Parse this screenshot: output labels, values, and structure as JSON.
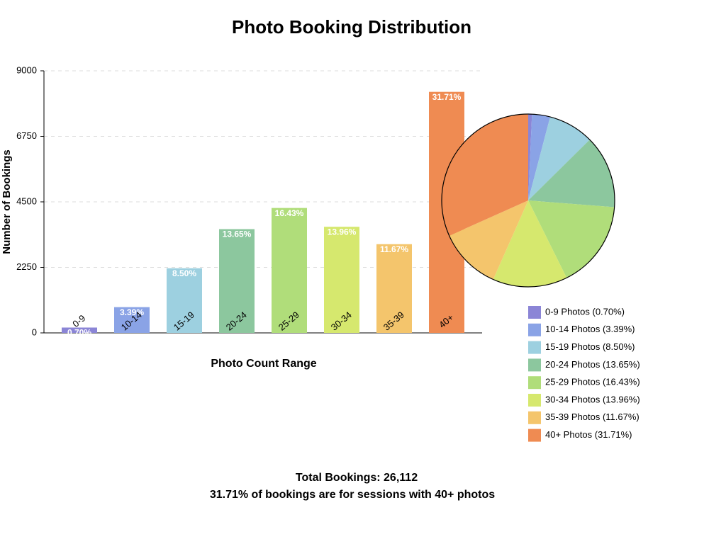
{
  "chart_data": [
    {
      "type": "bar",
      "title": "Photo Booking Distribution",
      "x_label": "Photo Count Range",
      "y_label": "Number of Bookings",
      "categories": [
        "0-9",
        "10-14",
        "15-19",
        "20-24",
        "25-29",
        "30-34",
        "35-39",
        "40+"
      ],
      "values": [
        183,
        885,
        2220,
        3564,
        4290,
        3645,
        3047,
        8278
      ],
      "percent_labels": [
        "0.70%",
        "3.39%",
        "8.50%",
        "13.65%",
        "16.43%",
        "13.96%",
        "11.67%",
        "31.71%"
      ],
      "colors": [
        "#8b85d6",
        "#8aa3e6",
        "#9dd0e0",
        "#8cc79e",
        "#b0dd7a",
        "#d6e86e",
        "#f4c56c",
        "#ef8b52"
      ],
      "ylim": [
        0,
        9000
      ],
      "yticks": [
        0,
        2250,
        4500,
        6750,
        9000
      ],
      "grid": true
    },
    {
      "type": "pie",
      "categories": [
        "0-9 Photos (0.70%)",
        "10-14 Photos (3.39%)",
        "15-19 Photos (8.50%)",
        "20-24 Photos (13.65%)",
        "25-29 Photos (16.43%)",
        "30-34 Photos (13.96%)",
        "35-39 Photos (11.67%)",
        "40+ Photos (31.71%)"
      ],
      "values": [
        183,
        885,
        2220,
        3564,
        4290,
        3645,
        3047,
        8278
      ],
      "colors": [
        "#8b85d6",
        "#8aa3e6",
        "#9dd0e0",
        "#8cc79e",
        "#b0dd7a",
        "#d6e86e",
        "#f4c56c",
        "#ef8b52"
      ]
    }
  ],
  "footer": {
    "total": "Total Bookings: 26,112",
    "note": "31.71% of bookings are for sessions with 40+ photos"
  }
}
